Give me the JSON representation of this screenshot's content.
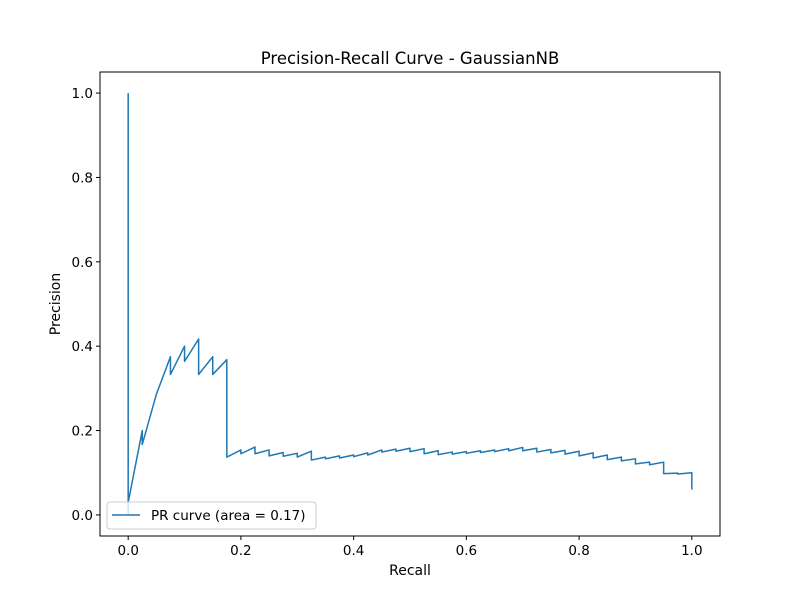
{
  "chart_data": {
    "type": "line",
    "title": "Precision-Recall Curve - GaussianNB",
    "xlabel": "Recall",
    "ylabel": "Precision",
    "xlim": [
      -0.05,
      1.05
    ],
    "ylim": [
      -0.05,
      1.05
    ],
    "xticks": [
      0.0,
      0.2,
      0.4,
      0.6,
      0.8,
      1.0
    ],
    "yticks": [
      0.0,
      0.2,
      0.4,
      0.6,
      0.8,
      1.0
    ],
    "xtick_labels": [
      "0.0",
      "0.2",
      "0.4",
      "0.6",
      "0.8",
      "1.0"
    ],
    "ytick_labels": [
      "0.0",
      "0.2",
      "0.4",
      "0.6",
      "0.8",
      "1.0"
    ],
    "grid": false,
    "legend_position": "lower left",
    "series": [
      {
        "name": "PR curve (area = 0.17)",
        "color": "#1f77b4",
        "x": [
          0.0,
          0.0,
          0.0,
          0.0,
          0.025,
          0.025,
          0.05,
          0.075,
          0.075,
          0.1,
          0.1,
          0.125,
          0.125,
          0.15,
          0.15,
          0.175,
          0.175,
          0.2,
          0.2,
          0.225,
          0.225,
          0.25,
          0.25,
          0.275,
          0.275,
          0.3,
          0.3,
          0.325,
          0.325,
          0.35,
          0.35,
          0.375,
          0.375,
          0.4,
          0.4,
          0.425,
          0.425,
          0.45,
          0.45,
          0.475,
          0.475,
          0.5,
          0.5,
          0.525,
          0.525,
          0.55,
          0.55,
          0.575,
          0.575,
          0.6,
          0.6,
          0.625,
          0.625,
          0.65,
          0.65,
          0.675,
          0.675,
          0.7,
          0.7,
          0.725,
          0.725,
          0.75,
          0.75,
          0.775,
          0.775,
          0.8,
          0.8,
          0.825,
          0.825,
          0.85,
          0.85,
          0.875,
          0.875,
          0.9,
          0.9,
          0.925,
          0.925,
          0.95,
          0.95,
          0.975,
          0.975,
          1.0,
          1.0
        ],
        "y": [
          1.0,
          0.0,
          0.025,
          0.03,
          0.2,
          0.167,
          0.286,
          0.375,
          0.333,
          0.4,
          0.364,
          0.417,
          0.333,
          0.375,
          0.333,
          0.368,
          0.137,
          0.154,
          0.145,
          0.161,
          0.145,
          0.154,
          0.14,
          0.148,
          0.139,
          0.146,
          0.137,
          0.151,
          0.13,
          0.137,
          0.133,
          0.14,
          0.135,
          0.142,
          0.138,
          0.147,
          0.142,
          0.154,
          0.149,
          0.156,
          0.151,
          0.158,
          0.15,
          0.157,
          0.145,
          0.152,
          0.143,
          0.149,
          0.144,
          0.15,
          0.146,
          0.152,
          0.148,
          0.154,
          0.15,
          0.157,
          0.152,
          0.16,
          0.152,
          0.158,
          0.149,
          0.155,
          0.147,
          0.153,
          0.144,
          0.151,
          0.14,
          0.147,
          0.135,
          0.142,
          0.131,
          0.137,
          0.128,
          0.133,
          0.121,
          0.125,
          0.119,
          0.125,
          0.098,
          0.099,
          0.097,
          0.1,
          0.06
        ]
      }
    ]
  }
}
